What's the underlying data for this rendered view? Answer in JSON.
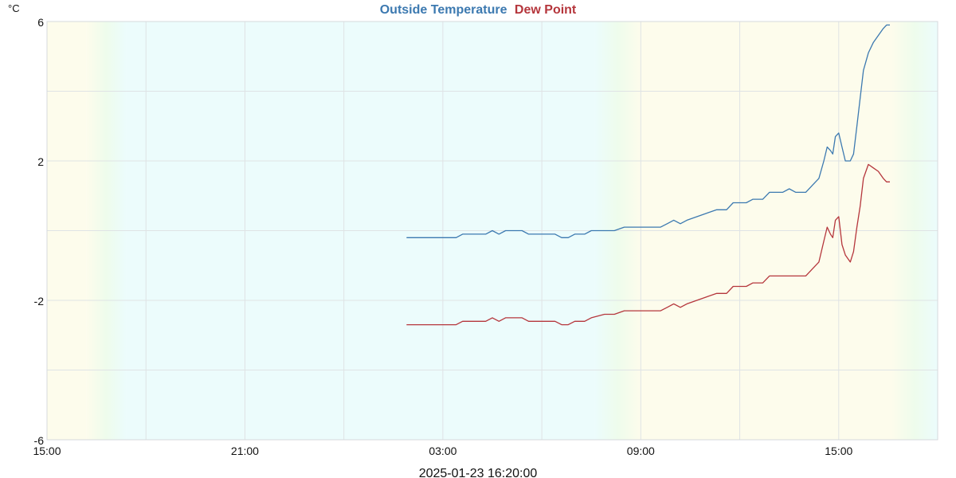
{
  "chart_data": {
    "type": "line",
    "title_parts": [
      {
        "text": "Outside Temperature",
        "color": "#3c79b0"
      },
      {
        "text": "Dew Point",
        "color": "#b5363c"
      }
    ],
    "ylabel": "°C",
    "footer": "2025-01-23 16:20:00",
    "x_unit": "hours",
    "xlim": [
      15.0,
      42.0
    ],
    "ylim": [
      -6,
      6
    ],
    "y_ticks": [
      -6,
      -2,
      2,
      6
    ],
    "x_ticks": [
      {
        "value": 15,
        "label": "15:00"
      },
      {
        "value": 21,
        "label": "21:00"
      },
      {
        "value": 27,
        "label": "03:00"
      },
      {
        "value": 33,
        "label": "09:00"
      },
      {
        "value": 39,
        "label": "15:00"
      }
    ],
    "grid": true,
    "background_bands": [
      {
        "from": 15.0,
        "to": 16.2,
        "color": "#fdfcec"
      },
      {
        "from": 16.2,
        "to": 17.4,
        "color": "gradient-day-to-night"
      },
      {
        "from": 17.4,
        "to": 31.6,
        "color": "#ecfcfc"
      },
      {
        "from": 31.6,
        "to": 33.0,
        "color": "gradient-night-to-day"
      },
      {
        "from": 33.0,
        "to": 40.6,
        "color": "#fdfcec"
      },
      {
        "from": 40.6,
        "to": 42.0,
        "color": "gradient-day-to-night"
      }
    ],
    "series": [
      {
        "name": "Outside Temperature",
        "color": "#3c79b0",
        "points": [
          [
            25.9,
            -0.2
          ],
          [
            26.5,
            -0.2
          ],
          [
            27.0,
            -0.2
          ],
          [
            27.4,
            -0.2
          ],
          [
            27.6,
            -0.1
          ],
          [
            28.0,
            -0.1
          ],
          [
            28.3,
            -0.1
          ],
          [
            28.5,
            0.0
          ],
          [
            28.7,
            -0.1
          ],
          [
            28.9,
            0.0
          ],
          [
            29.1,
            0.0
          ],
          [
            29.4,
            0.0
          ],
          [
            29.6,
            -0.1
          ],
          [
            30.0,
            -0.1
          ],
          [
            30.4,
            -0.1
          ],
          [
            30.6,
            -0.2
          ],
          [
            30.8,
            -0.2
          ],
          [
            31.0,
            -0.1
          ],
          [
            31.3,
            -0.1
          ],
          [
            31.5,
            0.0
          ],
          [
            31.9,
            0.0
          ],
          [
            32.2,
            0.0
          ],
          [
            32.5,
            0.1
          ],
          [
            32.9,
            0.1
          ],
          [
            33.3,
            0.1
          ],
          [
            33.6,
            0.1
          ],
          [
            33.8,
            0.2
          ],
          [
            34.0,
            0.3
          ],
          [
            34.2,
            0.2
          ],
          [
            34.4,
            0.3
          ],
          [
            34.7,
            0.4
          ],
          [
            35.0,
            0.5
          ],
          [
            35.3,
            0.6
          ],
          [
            35.6,
            0.6
          ],
          [
            35.8,
            0.8
          ],
          [
            36.2,
            0.8
          ],
          [
            36.4,
            0.9
          ],
          [
            36.7,
            0.9
          ],
          [
            36.9,
            1.1
          ],
          [
            37.3,
            1.1
          ],
          [
            37.5,
            1.2
          ],
          [
            37.7,
            1.1
          ],
          [
            38.0,
            1.1
          ],
          [
            38.2,
            1.3
          ],
          [
            38.4,
            1.5
          ],
          [
            38.55,
            2.0
          ],
          [
            38.65,
            2.4
          ],
          [
            38.75,
            2.3
          ],
          [
            38.82,
            2.2
          ],
          [
            38.9,
            2.7
          ],
          [
            39.0,
            2.8
          ],
          [
            39.1,
            2.4
          ],
          [
            39.2,
            2.0
          ],
          [
            39.35,
            2.0
          ],
          [
            39.45,
            2.2
          ],
          [
            39.55,
            3.0
          ],
          [
            39.65,
            3.8
          ],
          [
            39.75,
            4.6
          ],
          [
            39.9,
            5.1
          ],
          [
            40.05,
            5.4
          ],
          [
            40.2,
            5.6
          ],
          [
            40.35,
            5.8
          ],
          [
            40.45,
            5.9
          ],
          [
            40.55,
            5.9
          ]
        ]
      },
      {
        "name": "Dew Point",
        "color": "#b5363c",
        "points": [
          [
            25.9,
            -2.7
          ],
          [
            26.5,
            -2.7
          ],
          [
            27.0,
            -2.7
          ],
          [
            27.4,
            -2.7
          ],
          [
            27.6,
            -2.6
          ],
          [
            28.0,
            -2.6
          ],
          [
            28.3,
            -2.6
          ],
          [
            28.5,
            -2.5
          ],
          [
            28.7,
            -2.6
          ],
          [
            28.9,
            -2.5
          ],
          [
            29.1,
            -2.5
          ],
          [
            29.4,
            -2.5
          ],
          [
            29.6,
            -2.6
          ],
          [
            30.0,
            -2.6
          ],
          [
            30.4,
            -2.6
          ],
          [
            30.6,
            -2.7
          ],
          [
            30.8,
            -2.7
          ],
          [
            31.0,
            -2.6
          ],
          [
            31.3,
            -2.6
          ],
          [
            31.5,
            -2.5
          ],
          [
            31.9,
            -2.4
          ],
          [
            32.2,
            -2.4
          ],
          [
            32.5,
            -2.3
          ],
          [
            32.9,
            -2.3
          ],
          [
            33.3,
            -2.3
          ],
          [
            33.6,
            -2.3
          ],
          [
            33.8,
            -2.2
          ],
          [
            34.0,
            -2.1
          ],
          [
            34.2,
            -2.2
          ],
          [
            34.4,
            -2.1
          ],
          [
            34.7,
            -2.0
          ],
          [
            35.0,
            -1.9
          ],
          [
            35.3,
            -1.8
          ],
          [
            35.6,
            -1.8
          ],
          [
            35.8,
            -1.6
          ],
          [
            36.2,
            -1.6
          ],
          [
            36.4,
            -1.5
          ],
          [
            36.7,
            -1.5
          ],
          [
            36.9,
            -1.3
          ],
          [
            37.3,
            -1.3
          ],
          [
            37.5,
            -1.3
          ],
          [
            37.7,
            -1.3
          ],
          [
            38.0,
            -1.3
          ],
          [
            38.2,
            -1.1
          ],
          [
            38.4,
            -0.9
          ],
          [
            38.55,
            -0.3
          ],
          [
            38.65,
            0.1
          ],
          [
            38.75,
            -0.1
          ],
          [
            38.82,
            -0.2
          ],
          [
            38.9,
            0.3
          ],
          [
            39.0,
            0.4
          ],
          [
            39.1,
            -0.4
          ],
          [
            39.2,
            -0.7
          ],
          [
            39.35,
            -0.9
          ],
          [
            39.45,
            -0.6
          ],
          [
            39.55,
            0.1
          ],
          [
            39.65,
            0.7
          ],
          [
            39.75,
            1.5
          ],
          [
            39.9,
            1.9
          ],
          [
            40.05,
            1.8
          ],
          [
            40.2,
            1.7
          ],
          [
            40.35,
            1.5
          ],
          [
            40.45,
            1.4
          ],
          [
            40.55,
            1.4
          ]
        ]
      }
    ]
  }
}
